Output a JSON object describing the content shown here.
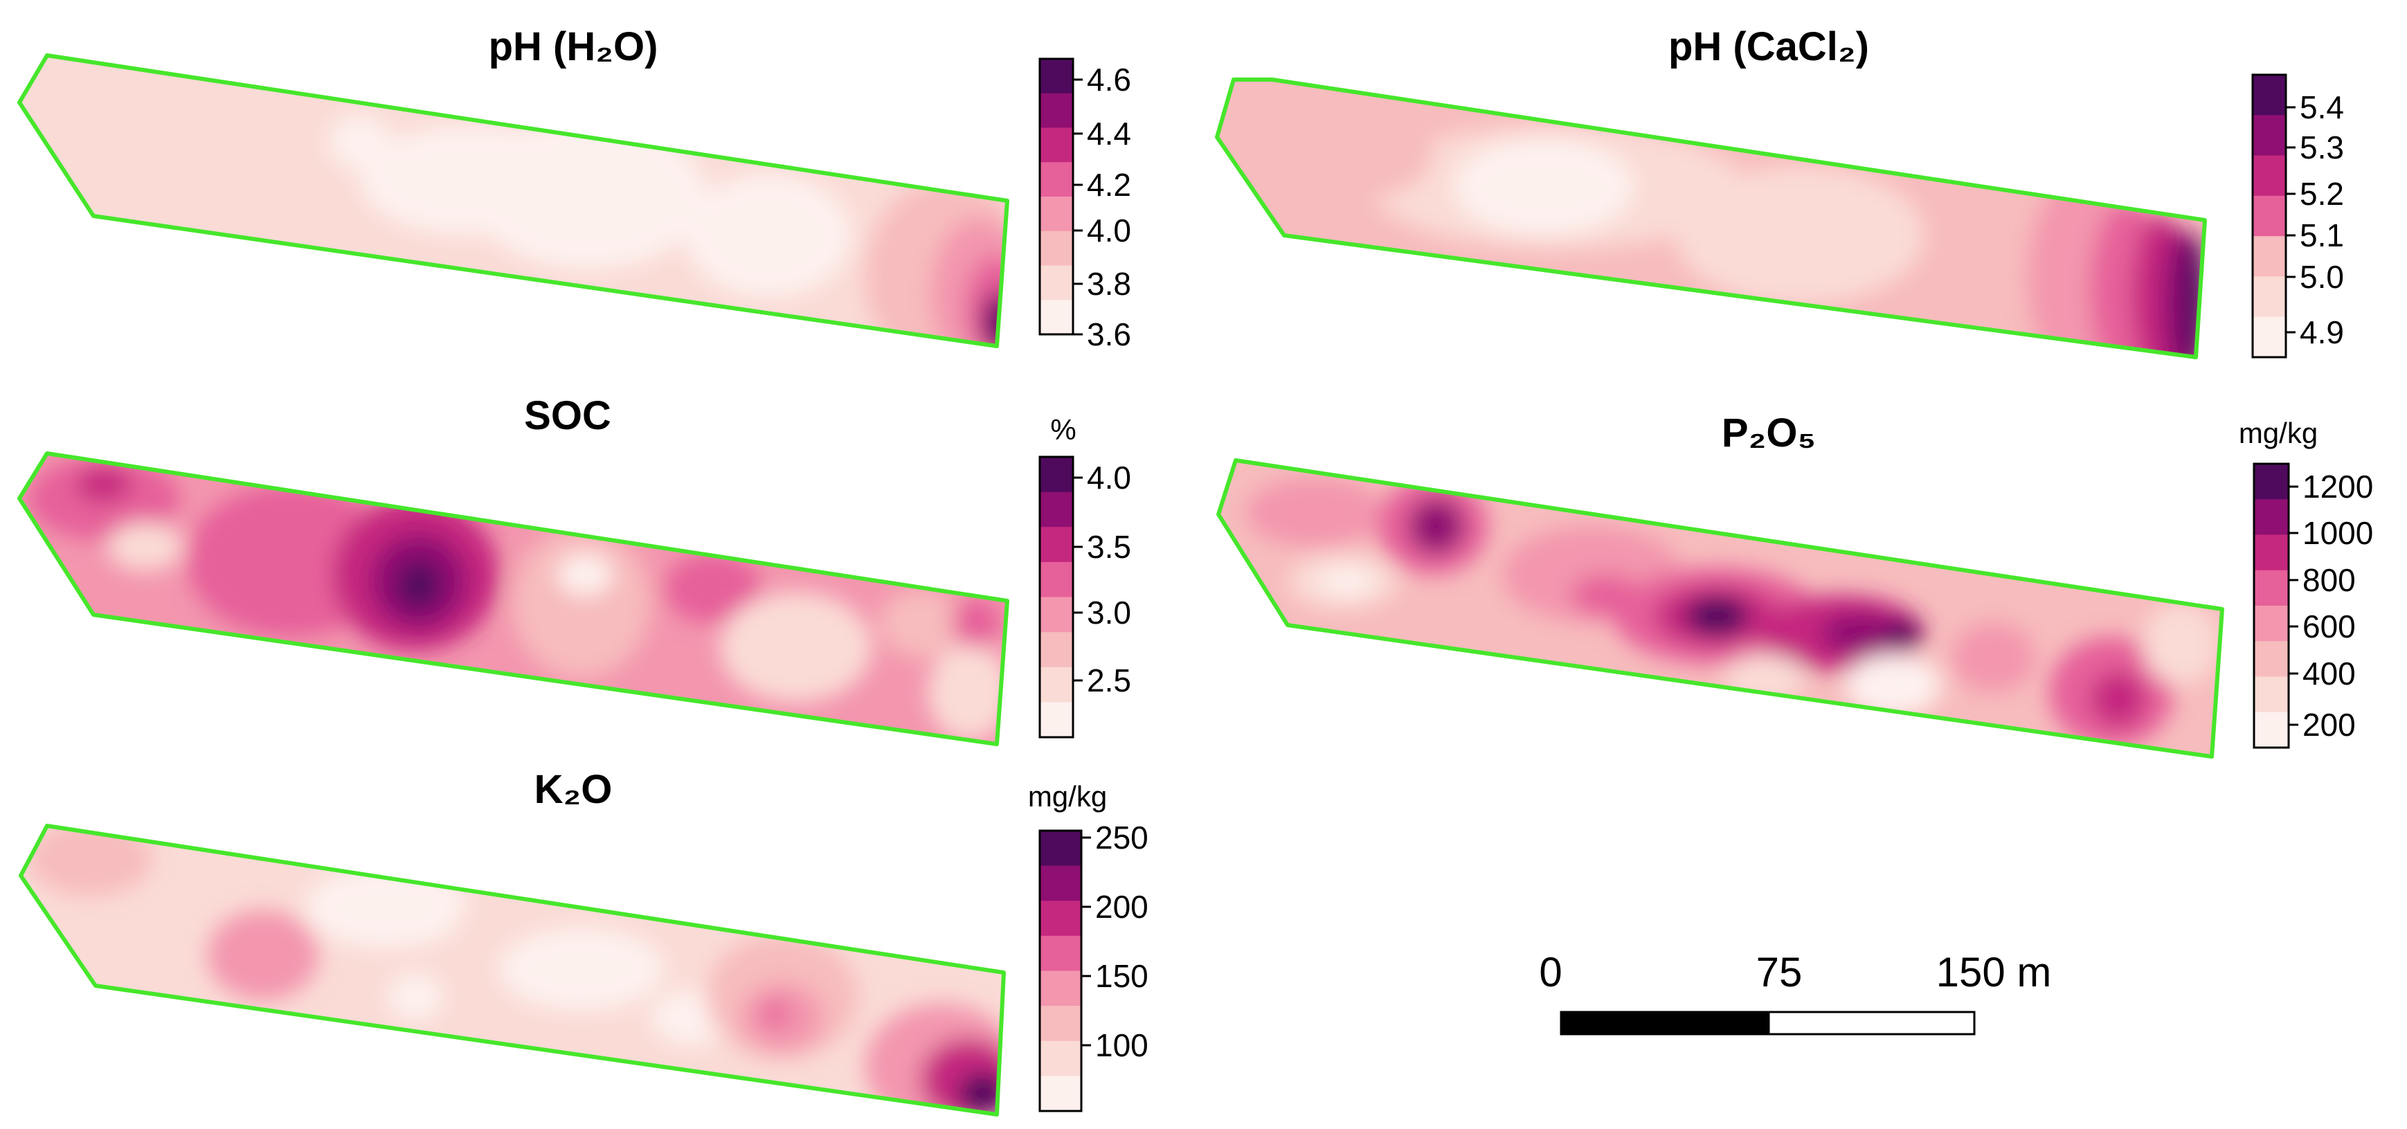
{
  "palette": [
    "#fdf1ee",
    "#fadbd6",
    "#f7bcbd",
    "#f396ae",
    "#e6609a",
    "#c5287f",
    "#8f0f72",
    "#4f0a5e"
  ],
  "border_color": "#46e62b",
  "maps": [
    {
      "id": "ph-h2o",
      "title": "pH (H₂O)",
      "unit": "",
      "legend_ticks": [
        "4.6",
        "4.4",
        "4.2",
        "4.0",
        "3.8",
        "3.6"
      ]
    },
    {
      "id": "ph-cacl2",
      "title": "pH (CaCl₂)",
      "unit": "",
      "legend_ticks": [
        "5.4",
        "5.3",
        "5.2",
        "5.1",
        "5.0",
        "4.9"
      ]
    },
    {
      "id": "soc",
      "title": "SOC",
      "unit": "%",
      "legend_ticks": [
        "4.0",
        "3.5",
        "3.0",
        "2.5"
      ]
    },
    {
      "id": "p2o5",
      "title": "P₂O₅",
      "unit": "mg/kg",
      "legend_ticks": [
        "1200",
        "1000",
        "800",
        "600",
        "400",
        "200"
      ]
    },
    {
      "id": "k2o",
      "title": "K₂O",
      "unit": "mg/kg",
      "legend_ticks": [
        "250",
        "200",
        "150",
        "100"
      ]
    }
  ],
  "scale_bar": {
    "labels": [
      "0",
      "75",
      "150 m"
    ]
  }
}
